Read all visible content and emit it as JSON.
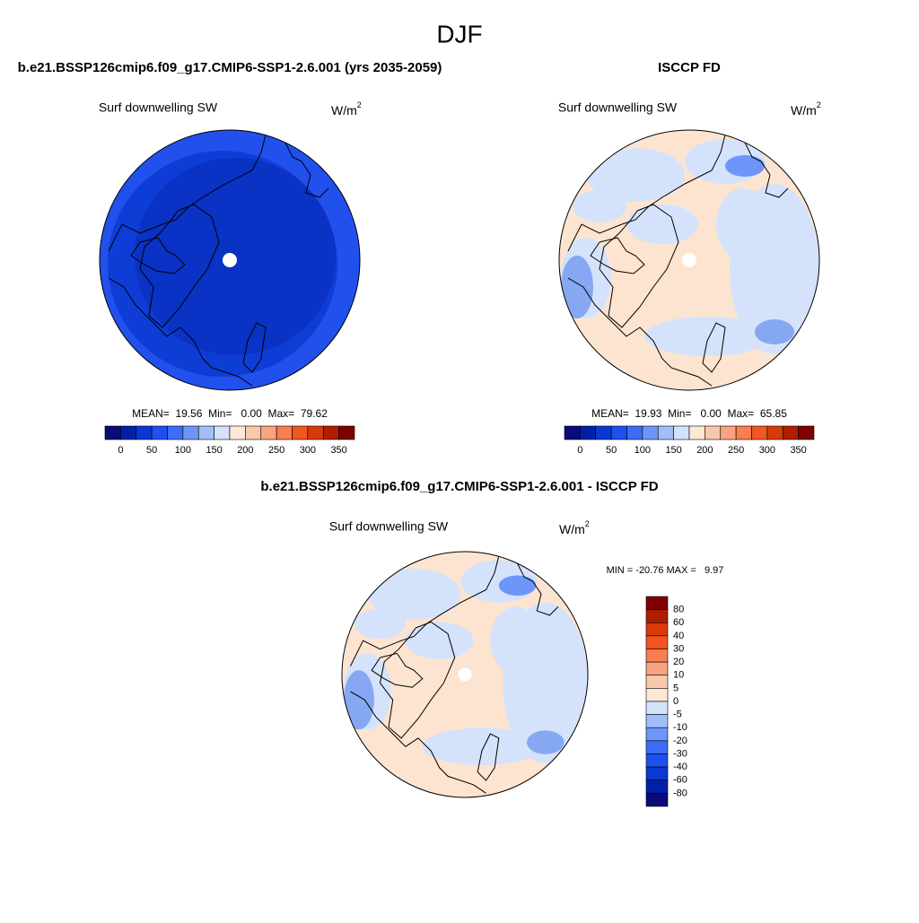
{
  "title": "DJF",
  "panels": [
    {
      "title": "b.e21.BSSP126cmip6.f09_g17.CMIP6-SSP1-2.6.001 (yrs 2035-2059)",
      "variable": "Surf downwelling SW",
      "units": "W/m",
      "units_exp": "2",
      "stats": "MEAN=  19.56  Min=   0.00  Max=  79.62",
      "colorbar": {
        "colors": [
          "#0a0a78",
          "#0020a8",
          "#0a38d0",
          "#1e50ee",
          "#3c6cf8",
          "#6e96f8",
          "#a2bef8",
          "#d2e2fb",
          "#fde8d6",
          "#f9c8ac",
          "#f8a480",
          "#f87e50",
          "#f25422",
          "#d83a0a",
          "#b01e00",
          "#7e0000"
        ],
        "labels": [
          "0",
          "50",
          "100",
          "150",
          "200",
          "250",
          "300",
          "350"
        ]
      }
    },
    {
      "title": "ISCCP FD",
      "variable": "Surf downwelling SW",
      "units": "W/m",
      "units_exp": "2",
      "stats": "MEAN=  19.93  Min=   0.00  Max=  65.85",
      "colorbar": {
        "colors": [
          "#0a0a78",
          "#0020a8",
          "#0a38d0",
          "#1e50ee",
          "#3c6cf8",
          "#6e96f8",
          "#a2bef8",
          "#d2e2fb",
          "#fde8d6",
          "#f9c8ac",
          "#f8a480",
          "#f87e50",
          "#f25422",
          "#d83a0a",
          "#b01e00",
          "#7e0000"
        ],
        "labels": [
          "0",
          "50",
          "100",
          "150",
          "200",
          "250",
          "300",
          "350"
        ]
      }
    }
  ],
  "difference": {
    "title": "b.e21.BSSP126cmip6.f09_g17.CMIP6-SSP1-2.6.001 - ISCCP FD",
    "variable": "Surf downwelling SW",
    "units": "W/m",
    "units_exp": "2",
    "stats": "MIN = -20.76 MAX =   9.97",
    "colorbar": {
      "colors": [
        "#7e0000",
        "#b01e00",
        "#d83a0a",
        "#f25422",
        "#f87e50",
        "#f8a480",
        "#f9c8ac",
        "#fde8d6",
        "#d2e2fb",
        "#a2bef8",
        "#6e96f8",
        "#3c6cf8",
        "#1e50ee",
        "#0a38d0",
        "#0020a8",
        "#0a0a78"
      ],
      "labels": [
        "80",
        "60",
        "40",
        "30",
        "20",
        "10",
        "5",
        "0",
        "-5",
        "-10",
        "-20",
        "-30",
        "-40",
        "-60",
        "-80"
      ]
    }
  }
}
